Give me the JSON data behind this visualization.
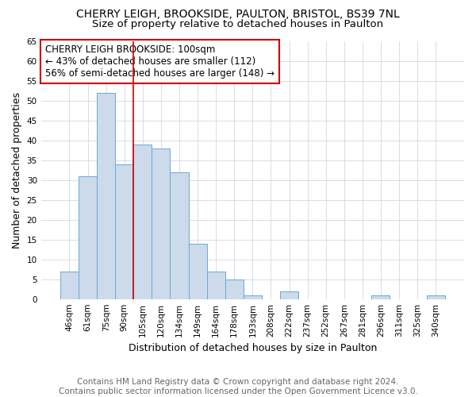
{
  "title1": "CHERRY LEIGH, BROOKSIDE, PAULTON, BRISTOL, BS39 7NL",
  "title2": "Size of property relative to detached houses in Paulton",
  "xlabel": "Distribution of detached houses by size in Paulton",
  "ylabel": "Number of detached properties",
  "footer1": "Contains HM Land Registry data © Crown copyright and database right 2024.",
  "footer2": "Contains public sector information licensed under the Open Government Licence v3.0.",
  "annotation_line1": "CHERRY LEIGH BROOKSIDE: 100sqm",
  "annotation_line2": "← 43% of detached houses are smaller (112)",
  "annotation_line3": "56% of semi-detached houses are larger (148) →",
  "bar_labels": [
    "46sqm",
    "61sqm",
    "75sqm",
    "90sqm",
    "105sqm",
    "120sqm",
    "134sqm",
    "149sqm",
    "164sqm",
    "178sqm",
    "193sqm",
    "208sqm",
    "222sqm",
    "237sqm",
    "252sqm",
    "267sqm",
    "281sqm",
    "296sqm",
    "311sqm",
    "325sqm",
    "340sqm"
  ],
  "bar_values": [
    7,
    31,
    52,
    34,
    39,
    38,
    32,
    14,
    7,
    5,
    1,
    0,
    2,
    0,
    0,
    0,
    0,
    1,
    0,
    0,
    1
  ],
  "bar_color": "#ccdaeb",
  "bar_edge_color": "#6aaad4",
  "red_line_x": 3.5,
  "ylim": [
    0,
    65
  ],
  "yticks": [
    0,
    5,
    10,
    15,
    20,
    25,
    30,
    35,
    40,
    45,
    50,
    55,
    60,
    65
  ],
  "annotation_box_color": "#ffffff",
  "annotation_box_edge": "#cc0000",
  "red_line_color": "#cc0000",
  "grid_color": "#d0d8e4",
  "background_color": "#ffffff",
  "title1_fontsize": 10,
  "title2_fontsize": 9.5,
  "annotation_fontsize": 8.5,
  "axis_label_fontsize": 9,
  "tick_fontsize": 7.5,
  "footer_fontsize": 7.5
}
